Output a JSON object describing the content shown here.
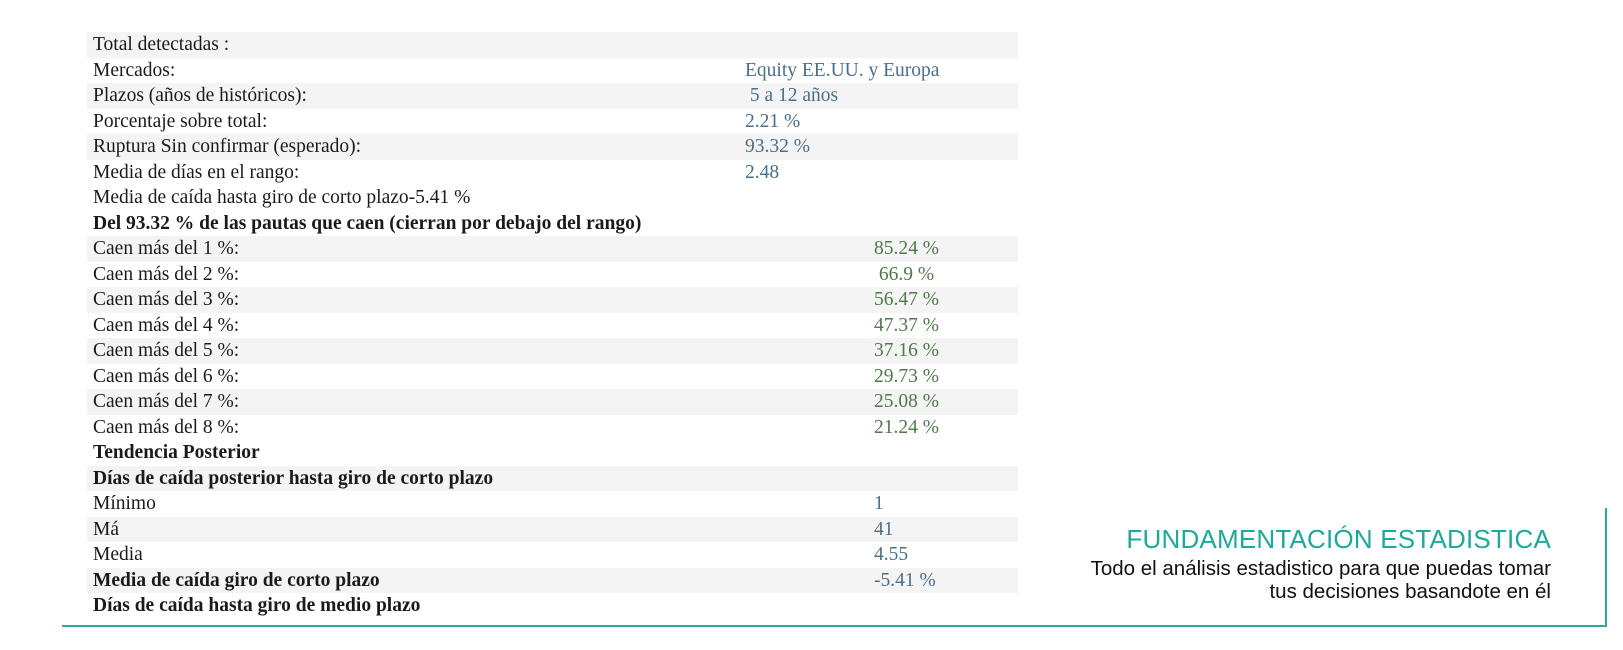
{
  "stats": {
    "total_label": "Total detectadas :",
    "mercados_label": "Mercados:",
    "mercados_value": "Equity EE.UU. y Europa",
    "plazos_label": "Plazos (años de históricos):",
    "plazos_value": " 5 a 12 años",
    "porcentaje_label": "Porcentaje sobre total:",
    "porcentaje_value": "2.21 %",
    "ruptura_label": "Ruptura Sin confirmar (esperado):",
    "ruptura_value": "93.32 %",
    "media_dias_label": "Media de días en el rango:",
    "media_dias_value": "2.48",
    "media_caida_label": "Media de caída hasta giro de corto plazo-5.41 %",
    "del_heading": "Del 93.32 % de las pautas que caen (cierran por debajo del rango)",
    "caen": [
      {
        "label": "Caen más del 1 %:",
        "value": "85.24 %"
      },
      {
        "label": "Caen más del 2 %:",
        "value": " 66.9 %"
      },
      {
        "label": "Caen más del 3 %:",
        "value": "56.47 %"
      },
      {
        "label": "Caen más del 4 %:",
        "value": "47.37 %"
      },
      {
        "label": "Caen más del 5 %:",
        "value": "37.16 %"
      },
      {
        "label": "Caen más del 6 %:",
        "value": "29.73 %"
      },
      {
        "label": "Caen más del 7 %:",
        "value": "25.08 %"
      },
      {
        "label": "Caen más del 8 %:",
        "value": "21.24 %"
      }
    ],
    "tendencia_heading": "Tendencia Posterior",
    "dias_caida_heading": "Días de caída posterior hasta giro de corto plazo",
    "minimo_label": "Mínimo",
    "minimo_value": "1",
    "maximo_label": "Má",
    "maximo_value": "41",
    "media_label": "Media",
    "media_value": "4.55",
    "media_giro_label": "Media de caída giro de corto plazo",
    "media_giro_value": "-5.41 %",
    "dias_medio_heading": "Días de caída hasta giro de medio plazo"
  },
  "footer": {
    "title": "FUNDAMENTACIÓN ESTADISTICA",
    "subtitle": "Todo el análisis estadistico para que puedas tomar tus decisiones basandote en él"
  },
  "colors": {
    "accent": "#2aa89a",
    "value_blue": "#4a6f8c",
    "value_green": "#4f7a4a"
  }
}
